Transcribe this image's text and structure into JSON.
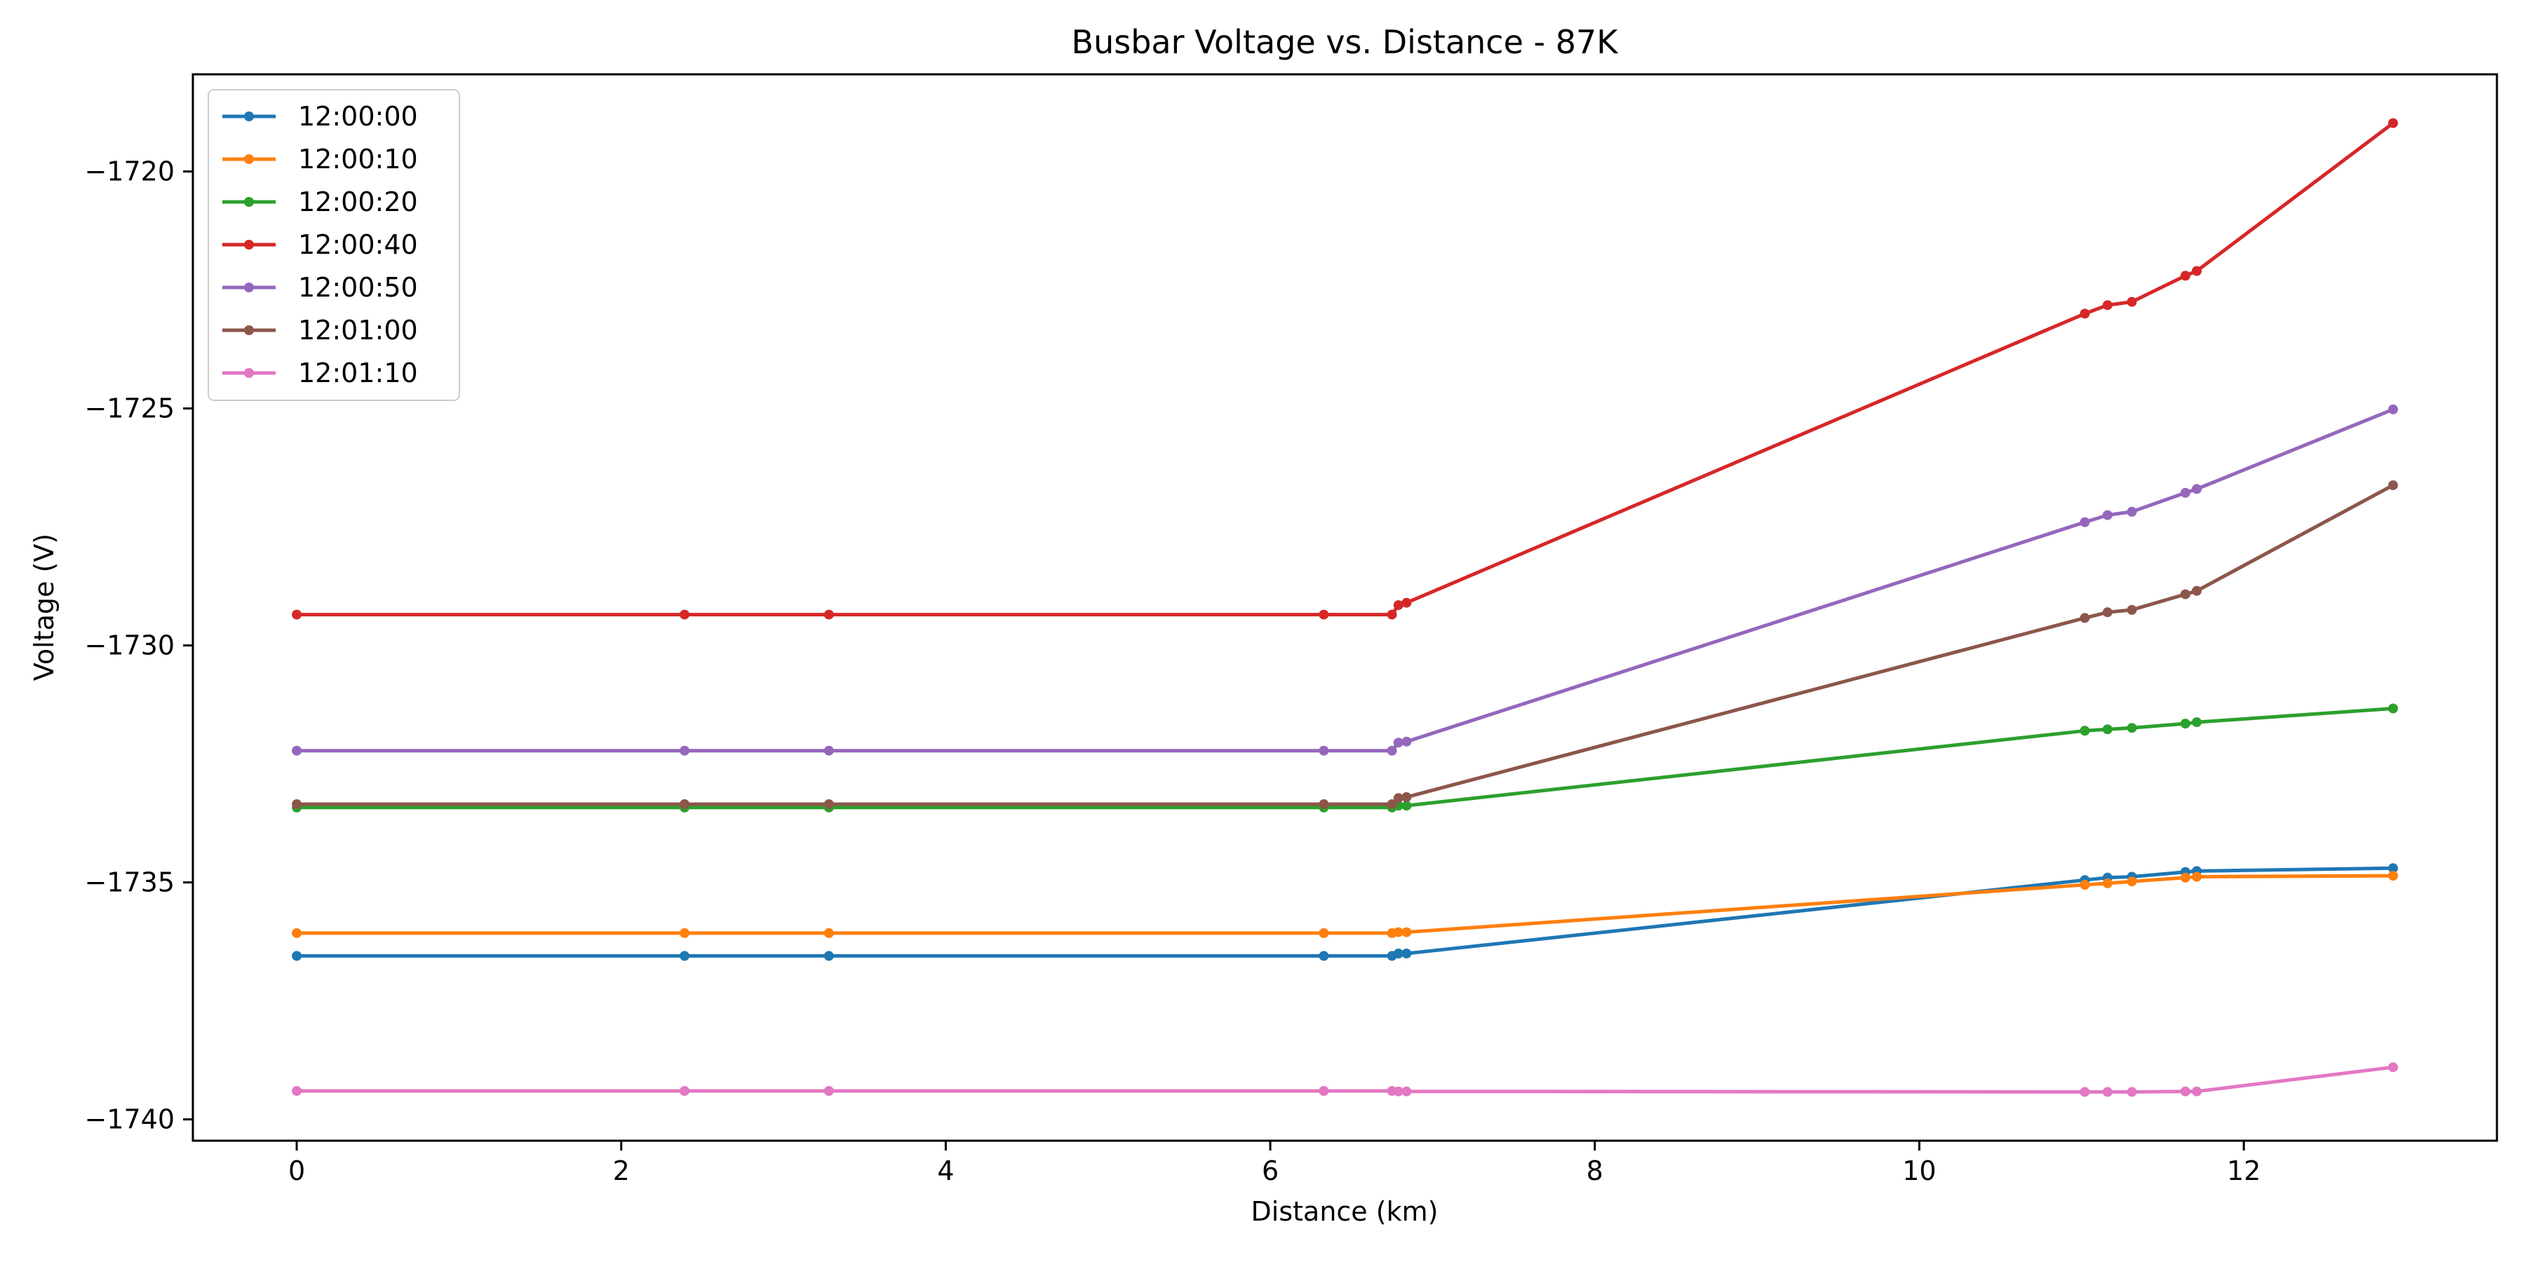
{
  "chart_data": {
    "type": "line",
    "title": "Busbar Voltage vs. Distance - 87K",
    "xlabel": "Distance (km)",
    "ylabel": "Voltage (V)",
    "xlim": [
      -0.64,
      13.56
    ],
    "ylim": [
      -1740.45,
      -1717.95
    ],
    "xticks": [
      0,
      2,
      4,
      6,
      8,
      10,
      12
    ],
    "yticks": [
      -1740,
      -1735,
      -1730,
      -1725,
      -1720
    ],
    "xtick_labels": [
      "0",
      "2",
      "4",
      "6",
      "8",
      "10",
      "12"
    ],
    "ytick_labels": [
      "−1740",
      "−1735",
      "−1730",
      "−1725",
      "−1720"
    ],
    "grid": false,
    "legend_position": "upper-left",
    "x": [
      0,
      2.39,
      3.28,
      6.33,
      6.75,
      6.79,
      6.84,
      11.02,
      11.16,
      11.31,
      11.64,
      11.71,
      12.92
    ],
    "series": [
      {
        "name": "12:00:00",
        "color": "#1f77b4",
        "values": [
          -1736.55,
          -1736.55,
          -1736.55,
          -1736.55,
          -1736.55,
          -1736.5,
          -1736.5,
          -1734.95,
          -1734.9,
          -1734.88,
          -1734.78,
          -1734.76,
          -1734.7
        ]
      },
      {
        "name": "12:00:10",
        "color": "#ff7f0e",
        "values": [
          -1736.07,
          -1736.07,
          -1736.07,
          -1736.07,
          -1736.07,
          -1736.05,
          -1736.05,
          -1735.05,
          -1735.02,
          -1734.98,
          -1734.9,
          -1734.88,
          -1734.86
        ]
      },
      {
        "name": "12:00:20",
        "color": "#2ca02c",
        "values": [
          -1733.42,
          -1733.42,
          -1733.42,
          -1733.42,
          -1733.42,
          -1733.38,
          -1733.38,
          -1731.8,
          -1731.77,
          -1731.74,
          -1731.65,
          -1731.62,
          -1731.33
        ]
      },
      {
        "name": "12:00:40",
        "color": "#d62728",
        "values": [
          -1729.35,
          -1729.35,
          -1729.35,
          -1729.35,
          -1729.35,
          -1729.15,
          -1729.1,
          -1723.0,
          -1722.82,
          -1722.75,
          -1722.2,
          -1722.1,
          -1718.98
        ]
      },
      {
        "name": "12:00:50",
        "color": "#9467bd",
        "values": [
          -1732.22,
          -1732.22,
          -1732.22,
          -1732.22,
          -1732.22,
          -1732.05,
          -1732.03,
          -1727.4,
          -1727.25,
          -1727.18,
          -1726.78,
          -1726.7,
          -1725.02
        ]
      },
      {
        "name": "12:01:00",
        "color": "#8c564b",
        "values": [
          -1733.35,
          -1733.35,
          -1733.35,
          -1733.35,
          -1733.35,
          -1733.22,
          -1733.2,
          -1729.42,
          -1729.3,
          -1729.25,
          -1728.92,
          -1728.85,
          -1726.62
        ]
      },
      {
        "name": "12:01:10",
        "color": "#e377c2",
        "values": [
          -1739.4,
          -1739.4,
          -1739.4,
          -1739.4,
          -1739.4,
          -1739.41,
          -1739.41,
          -1739.42,
          -1739.42,
          -1739.42,
          -1739.41,
          -1739.41,
          -1738.9
        ]
      }
    ]
  }
}
